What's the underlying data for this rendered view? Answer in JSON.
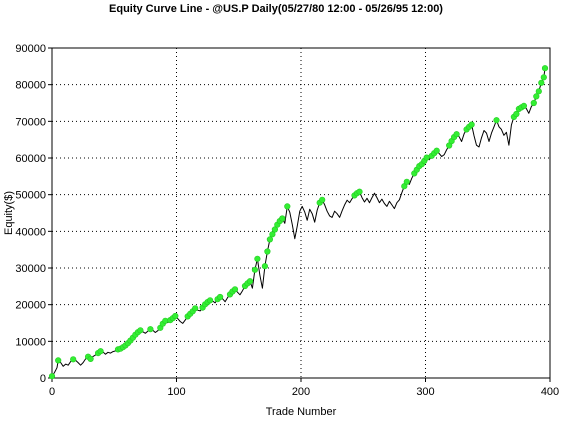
{
  "chart_data": {
    "type": "line",
    "title": "Equity Curve Line - @US.P Daily(05/27/80 12:00 - 05/26/95 12:00)",
    "xlabel": "Trade Number",
    "ylabel": "Equity($)",
    "xlim": [
      0,
      400
    ],
    "ylim": [
      0,
      90000
    ],
    "xticks": [
      0,
      100,
      200,
      300,
      400
    ],
    "yticks": [
      0,
      10000,
      20000,
      30000,
      40000,
      50000,
      60000,
      70000,
      80000,
      90000
    ],
    "grid": true,
    "legend": "none",
    "colors": {
      "line": "#000000",
      "marker": "#33ee33",
      "marker_edge": "#22cc22"
    },
    "series": [
      {
        "values": [
          [
            0,
            500
          ],
          [
            2,
            1500
          ],
          [
            4,
            2800
          ],
          [
            5,
            4800
          ],
          [
            7,
            4200
          ],
          [
            9,
            3200
          ],
          [
            11,
            3800
          ],
          [
            13,
            3500
          ],
          [
            15,
            4500
          ],
          [
            17,
            5100
          ],
          [
            19,
            4800
          ],
          [
            21,
            4200
          ],
          [
            23,
            3500
          ],
          [
            25,
            4200
          ],
          [
            27,
            5200
          ],
          [
            29,
            5800
          ],
          [
            31,
            5200
          ],
          [
            33,
            5900
          ],
          [
            35,
            6300
          ],
          [
            37,
            6800
          ],
          [
            39,
            7300
          ],
          [
            41,
            7100
          ],
          [
            43,
            6500
          ],
          [
            45,
            7000
          ],
          [
            47,
            6800
          ],
          [
            49,
            7200
          ],
          [
            51,
            7400
          ],
          [
            53,
            7800
          ],
          [
            55,
            8000
          ],
          [
            57,
            8400
          ],
          [
            59,
            8900
          ],
          [
            61,
            9500
          ],
          [
            63,
            10200
          ],
          [
            65,
            11000
          ],
          [
            67,
            11800
          ],
          [
            69,
            12500
          ],
          [
            71,
            13000
          ],
          [
            73,
            12600
          ],
          [
            75,
            12200
          ],
          [
            77,
            12800
          ],
          [
            79,
            13300
          ],
          [
            81,
            13000
          ],
          [
            83,
            12400
          ],
          [
            85,
            12900
          ],
          [
            87,
            13700
          ],
          [
            89,
            14800
          ],
          [
            91,
            15600
          ],
          [
            93,
            15100
          ],
          [
            95,
            15800
          ],
          [
            97,
            16300
          ],
          [
            99,
            16900
          ],
          [
            101,
            16200
          ],
          [
            103,
            15400
          ],
          [
            105,
            14900
          ],
          [
            107,
            15800
          ],
          [
            109,
            16800
          ],
          [
            111,
            17500
          ],
          [
            113,
            18200
          ],
          [
            115,
            19000
          ],
          [
            117,
            18500
          ],
          [
            119,
            18300
          ],
          [
            121,
            19200
          ],
          [
            123,
            20100
          ],
          [
            125,
            20700
          ],
          [
            127,
            21200
          ],
          [
            129,
            21000
          ],
          [
            131,
            20500
          ],
          [
            133,
            21500
          ],
          [
            135,
            22100
          ],
          [
            137,
            21600
          ],
          [
            139,
            20800
          ],
          [
            141,
            21900
          ],
          [
            143,
            22800
          ],
          [
            145,
            23600
          ],
          [
            147,
            24200
          ],
          [
            149,
            23400
          ],
          [
            151,
            22700
          ],
          [
            153,
            23800
          ],
          [
            155,
            25100
          ],
          [
            157,
            25800
          ],
          [
            159,
            26400
          ],
          [
            161,
            24500
          ],
          [
            163,
            29500
          ],
          [
            165,
            32500
          ],
          [
            167,
            28000
          ],
          [
            169,
            24500
          ],
          [
            171,
            30500
          ],
          [
            173,
            34500
          ],
          [
            175,
            37800
          ],
          [
            177,
            39200
          ],
          [
            179,
            40500
          ],
          [
            181,
            41800
          ],
          [
            183,
            42800
          ],
          [
            185,
            43500
          ],
          [
            187,
            42200
          ],
          [
            189,
            46800
          ],
          [
            191,
            45200
          ],
          [
            193,
            41800
          ],
          [
            195,
            38000
          ],
          [
            197,
            41500
          ],
          [
            199,
            45500
          ],
          [
            201,
            46800
          ],
          [
            203,
            45300
          ],
          [
            205,
            43000
          ],
          [
            207,
            46000
          ],
          [
            209,
            44800
          ],
          [
            211,
            42500
          ],
          [
            213,
            45800
          ],
          [
            215,
            47800
          ],
          [
            217,
            48600
          ],
          [
            219,
            47200
          ],
          [
            221,
            45500
          ],
          [
            223,
            44200
          ],
          [
            225,
            43800
          ],
          [
            227,
            45500
          ],
          [
            229,
            44800
          ],
          [
            231,
            43800
          ],
          [
            233,
            45600
          ],
          [
            235,
            47200
          ],
          [
            237,
            48500
          ],
          [
            239,
            47800
          ],
          [
            241,
            48900
          ],
          [
            243,
            49800
          ],
          [
            245,
            50400
          ],
          [
            247,
            50800
          ],
          [
            249,
            49200
          ],
          [
            251,
            48000
          ],
          [
            253,
            49000
          ],
          [
            255,
            47800
          ],
          [
            257,
            49200
          ],
          [
            259,
            50400
          ],
          [
            261,
            49200
          ],
          [
            263,
            47800
          ],
          [
            265,
            48800
          ],
          [
            267,
            47600
          ],
          [
            269,
            46800
          ],
          [
            271,
            48200
          ],
          [
            273,
            47200
          ],
          [
            275,
            46200
          ],
          [
            277,
            47800
          ],
          [
            279,
            48600
          ],
          [
            281,
            50500
          ],
          [
            283,
            52300
          ],
          [
            285,
            53500
          ],
          [
            287,
            52800
          ],
          [
            289,
            54500
          ],
          [
            291,
            55800
          ],
          [
            293,
            56800
          ],
          [
            295,
            57800
          ],
          [
            297,
            58300
          ],
          [
            299,
            59200
          ],
          [
            301,
            60100
          ],
          [
            303,
            59500
          ],
          [
            305,
            60600
          ],
          [
            307,
            61300
          ],
          [
            309,
            62000
          ],
          [
            311,
            61200
          ],
          [
            313,
            60400
          ],
          [
            315,
            60900
          ],
          [
            317,
            62300
          ],
          [
            319,
            63400
          ],
          [
            321,
            64600
          ],
          [
            323,
            65700
          ],
          [
            325,
            66500
          ],
          [
            327,
            65800
          ],
          [
            329,
            64500
          ],
          [
            331,
            66600
          ],
          [
            333,
            67800
          ],
          [
            335,
            68500
          ],
          [
            337,
            69100
          ],
          [
            339,
            66000
          ],
          [
            341,
            63500
          ],
          [
            343,
            63000
          ],
          [
            345,
            65500
          ],
          [
            347,
            67500
          ],
          [
            349,
            66800
          ],
          [
            351,
            64500
          ],
          [
            353,
            66800
          ],
          [
            355,
            68500
          ],
          [
            357,
            70300
          ],
          [
            359,
            68500
          ],
          [
            361,
            67800
          ],
          [
            363,
            66200
          ],
          [
            365,
            67000
          ],
          [
            367,
            63500
          ],
          [
            369,
            69000
          ],
          [
            371,
            71200
          ],
          [
            373,
            72000
          ],
          [
            375,
            73400
          ],
          [
            377,
            73800
          ],
          [
            379,
            74200
          ],
          [
            381,
            73500
          ],
          [
            383,
            72200
          ],
          [
            385,
            74000
          ],
          [
            387,
            75000
          ],
          [
            389,
            76800
          ],
          [
            391,
            78200
          ],
          [
            393,
            80500
          ],
          [
            395,
            82000
          ],
          [
            396,
            84500
          ]
        ],
        "marked_points": [
          [
            0,
            500
          ],
          [
            5,
            4800
          ],
          [
            17,
            5100
          ],
          [
            29,
            5800
          ],
          [
            31,
            5200
          ],
          [
            37,
            6800
          ],
          [
            39,
            7300
          ],
          [
            53,
            7800
          ],
          [
            55,
            8000
          ],
          [
            57,
            8400
          ],
          [
            59,
            8900
          ],
          [
            61,
            9500
          ],
          [
            63,
            10200
          ],
          [
            65,
            11000
          ],
          [
            67,
            11800
          ],
          [
            69,
            12500
          ],
          [
            71,
            13000
          ],
          [
            79,
            13300
          ],
          [
            87,
            13700
          ],
          [
            89,
            14800
          ],
          [
            91,
            15600
          ],
          [
            95,
            15800
          ],
          [
            97,
            16300
          ],
          [
            99,
            16900
          ],
          [
            109,
            16800
          ],
          [
            111,
            17500
          ],
          [
            113,
            18200
          ],
          [
            115,
            19000
          ],
          [
            121,
            19200
          ],
          [
            123,
            20100
          ],
          [
            125,
            20700
          ],
          [
            127,
            21200
          ],
          [
            133,
            21500
          ],
          [
            135,
            22100
          ],
          [
            143,
            22800
          ],
          [
            145,
            23600
          ],
          [
            147,
            24200
          ],
          [
            155,
            25100
          ],
          [
            157,
            25800
          ],
          [
            159,
            26400
          ],
          [
            163,
            29500
          ],
          [
            165,
            32500
          ],
          [
            171,
            30500
          ],
          [
            173,
            34500
          ],
          [
            175,
            37800
          ],
          [
            177,
            39200
          ],
          [
            179,
            40500
          ],
          [
            181,
            41800
          ],
          [
            183,
            42800
          ],
          [
            185,
            43500
          ],
          [
            189,
            46800
          ],
          [
            215,
            47800
          ],
          [
            217,
            48600
          ],
          [
            243,
            49800
          ],
          [
            245,
            50400
          ],
          [
            247,
            50800
          ],
          [
            283,
            52300
          ],
          [
            285,
            53500
          ],
          [
            291,
            55800
          ],
          [
            293,
            56800
          ],
          [
            295,
            57800
          ],
          [
            297,
            58300
          ],
          [
            299,
            59200
          ],
          [
            301,
            60100
          ],
          [
            305,
            60600
          ],
          [
            307,
            61300
          ],
          [
            309,
            62000
          ],
          [
            319,
            63400
          ],
          [
            321,
            64600
          ],
          [
            323,
            65700
          ],
          [
            325,
            66500
          ],
          [
            333,
            67800
          ],
          [
            335,
            68500
          ],
          [
            337,
            69100
          ],
          [
            357,
            70300
          ],
          [
            371,
            71200
          ],
          [
            373,
            72000
          ],
          [
            375,
            73400
          ],
          [
            377,
            73800
          ],
          [
            379,
            74200
          ],
          [
            387,
            75000
          ],
          [
            389,
            76800
          ],
          [
            391,
            78200
          ],
          [
            393,
            80500
          ],
          [
            395,
            82000
          ],
          [
            396,
            84500
          ]
        ]
      }
    ]
  }
}
